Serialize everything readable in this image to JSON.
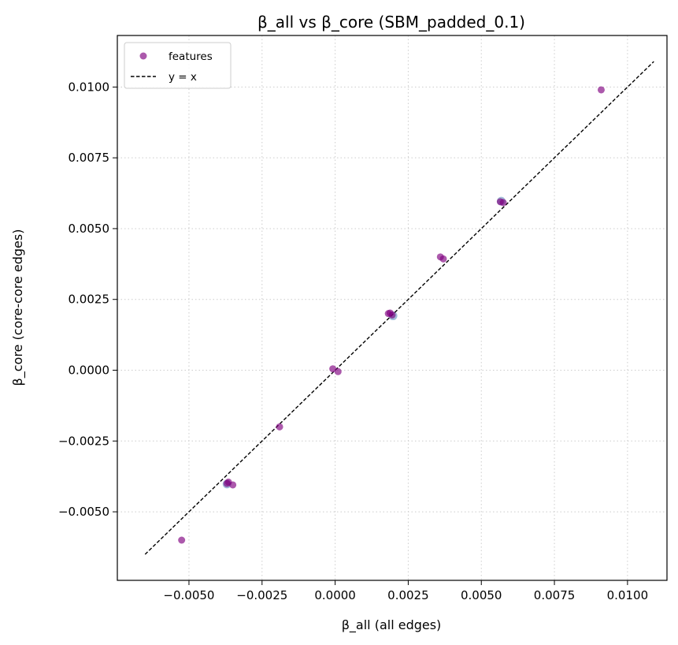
{
  "chart_data": {
    "type": "scatter",
    "title": "β_all vs β_core (SBM_padded_0.1)",
    "xlabel": "β_all (all edges)",
    "ylabel": "β_core (core-core edges)",
    "xlim": [
      -0.00745,
      0.01135
    ],
    "ylim": [
      -0.00742,
      0.01182
    ],
    "xticks": [
      -0.005,
      -0.0025,
      0.0,
      0.0025,
      0.005,
      0.0075,
      0.01
    ],
    "xtick_labels": [
      "−0.0050",
      "−0.0025",
      "0.0000",
      "0.0025",
      "0.0050",
      "0.0075",
      "0.0100"
    ],
    "yticks": [
      -0.005,
      -0.0025,
      0.0,
      0.0025,
      0.005,
      0.0075,
      0.01
    ],
    "ytick_labels": [
      "−0.0050",
      "−0.0025",
      "0.0000",
      "0.0025",
      "0.0050",
      "0.0075",
      "0.0100"
    ],
    "grid": true,
    "legend_position": "top-left",
    "series": [
      {
        "name": "features",
        "kind": "scatter",
        "color": "#800080",
        "points": [
          {
            "x": -0.00525,
            "y": -0.006
          },
          {
            "x": -0.0037,
            "y": -0.004
          },
          {
            "x": -0.00365,
            "y": -0.00395
          },
          {
            "x": -0.0035,
            "y": -0.00405
          },
          {
            "x": -0.0019,
            "y": -0.002
          },
          {
            "x": -8e-05,
            "y": 5e-05
          },
          {
            "x": 0.0001,
            "y": -5e-05
          },
          {
            "x": 0.00182,
            "y": 0.002
          },
          {
            "x": 0.00188,
            "y": 0.00202
          },
          {
            "x": 0.00195,
            "y": 0.00195
          },
          {
            "x": 0.0036,
            "y": 0.004
          },
          {
            "x": 0.0037,
            "y": 0.00393
          },
          {
            "x": 0.00565,
            "y": 0.00595
          },
          {
            "x": 0.00575,
            "y": 0.00592
          },
          {
            "x": 0.0091,
            "y": 0.0099
          }
        ]
      },
      {
        "name": "y = x",
        "kind": "line",
        "color": "#000000",
        "x": [
          -0.0065,
          0.0109
        ],
        "y": [
          -0.0065,
          0.0109
        ]
      }
    ],
    "background_points": {
      "color": "#7aa0c8",
      "points": [
        {
          "x": -0.0037,
          "y": -0.00402
        },
        {
          "x": 0.00198,
          "y": 0.00192
        },
        {
          "x": 0.00568,
          "y": 0.00597
        }
      ]
    }
  }
}
